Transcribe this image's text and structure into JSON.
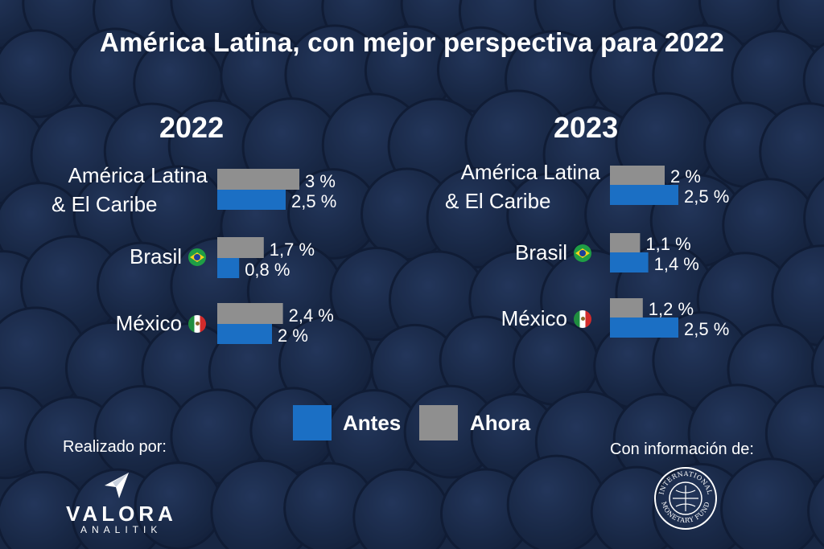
{
  "title": "América Latina, con mejor perspectiva para 2022",
  "colors": {
    "antes": "#1b6fc4",
    "ahora": "#8f8f8f",
    "background": "#1b2a48"
  },
  "chart_data": [
    {
      "type": "bar",
      "title": "2022",
      "orientation": "horizontal",
      "categories": [
        "América Latina & El Caribe",
        "Brasil",
        "México"
      ],
      "series": [
        {
          "name": "Ahora",
          "values": [
            3,
            1.7,
            2.4
          ],
          "labels": [
            "3 %",
            "1,7 %",
            "2,4 %"
          ]
        },
        {
          "name": "Antes",
          "values": [
            2.5,
            0.8,
            2
          ],
          "labels": [
            "2,5 %",
            "0,8 %",
            "2 %"
          ]
        }
      ]
    },
    {
      "type": "bar",
      "title": "2023",
      "orientation": "horizontal",
      "categories": [
        "América Latina & El Caribe",
        "Brasil",
        "México"
      ],
      "series": [
        {
          "name": "Ahora",
          "values": [
            2,
            1.1,
            1.2
          ],
          "labels": [
            "2 %",
            "1,1 %",
            "1,2 %"
          ]
        },
        {
          "name": "Antes",
          "values": [
            2.5,
            1.4,
            2.5
          ],
          "labels": [
            "2,5 %",
            "1,4 %",
            "2,5 %"
          ]
        }
      ]
    }
  ],
  "categories_display": {
    "america_line1": "América Latina",
    "america_line2": "& El Caribe",
    "brasil": "Brasil",
    "mexico": "México"
  },
  "legend": {
    "antes": "Antes",
    "ahora": "Ahora"
  },
  "credits": {
    "made_by": "Realizado por:",
    "source": "Con información de:",
    "brand_name": "VALORA",
    "brand_sub": "ANALITIK",
    "source_seal_text": "INTERNATIONAL MONETARY FUND"
  },
  "icons": {
    "brasil_flag": "brazil-flag-icon",
    "mexico_flag": "mexico-flag-icon"
  }
}
